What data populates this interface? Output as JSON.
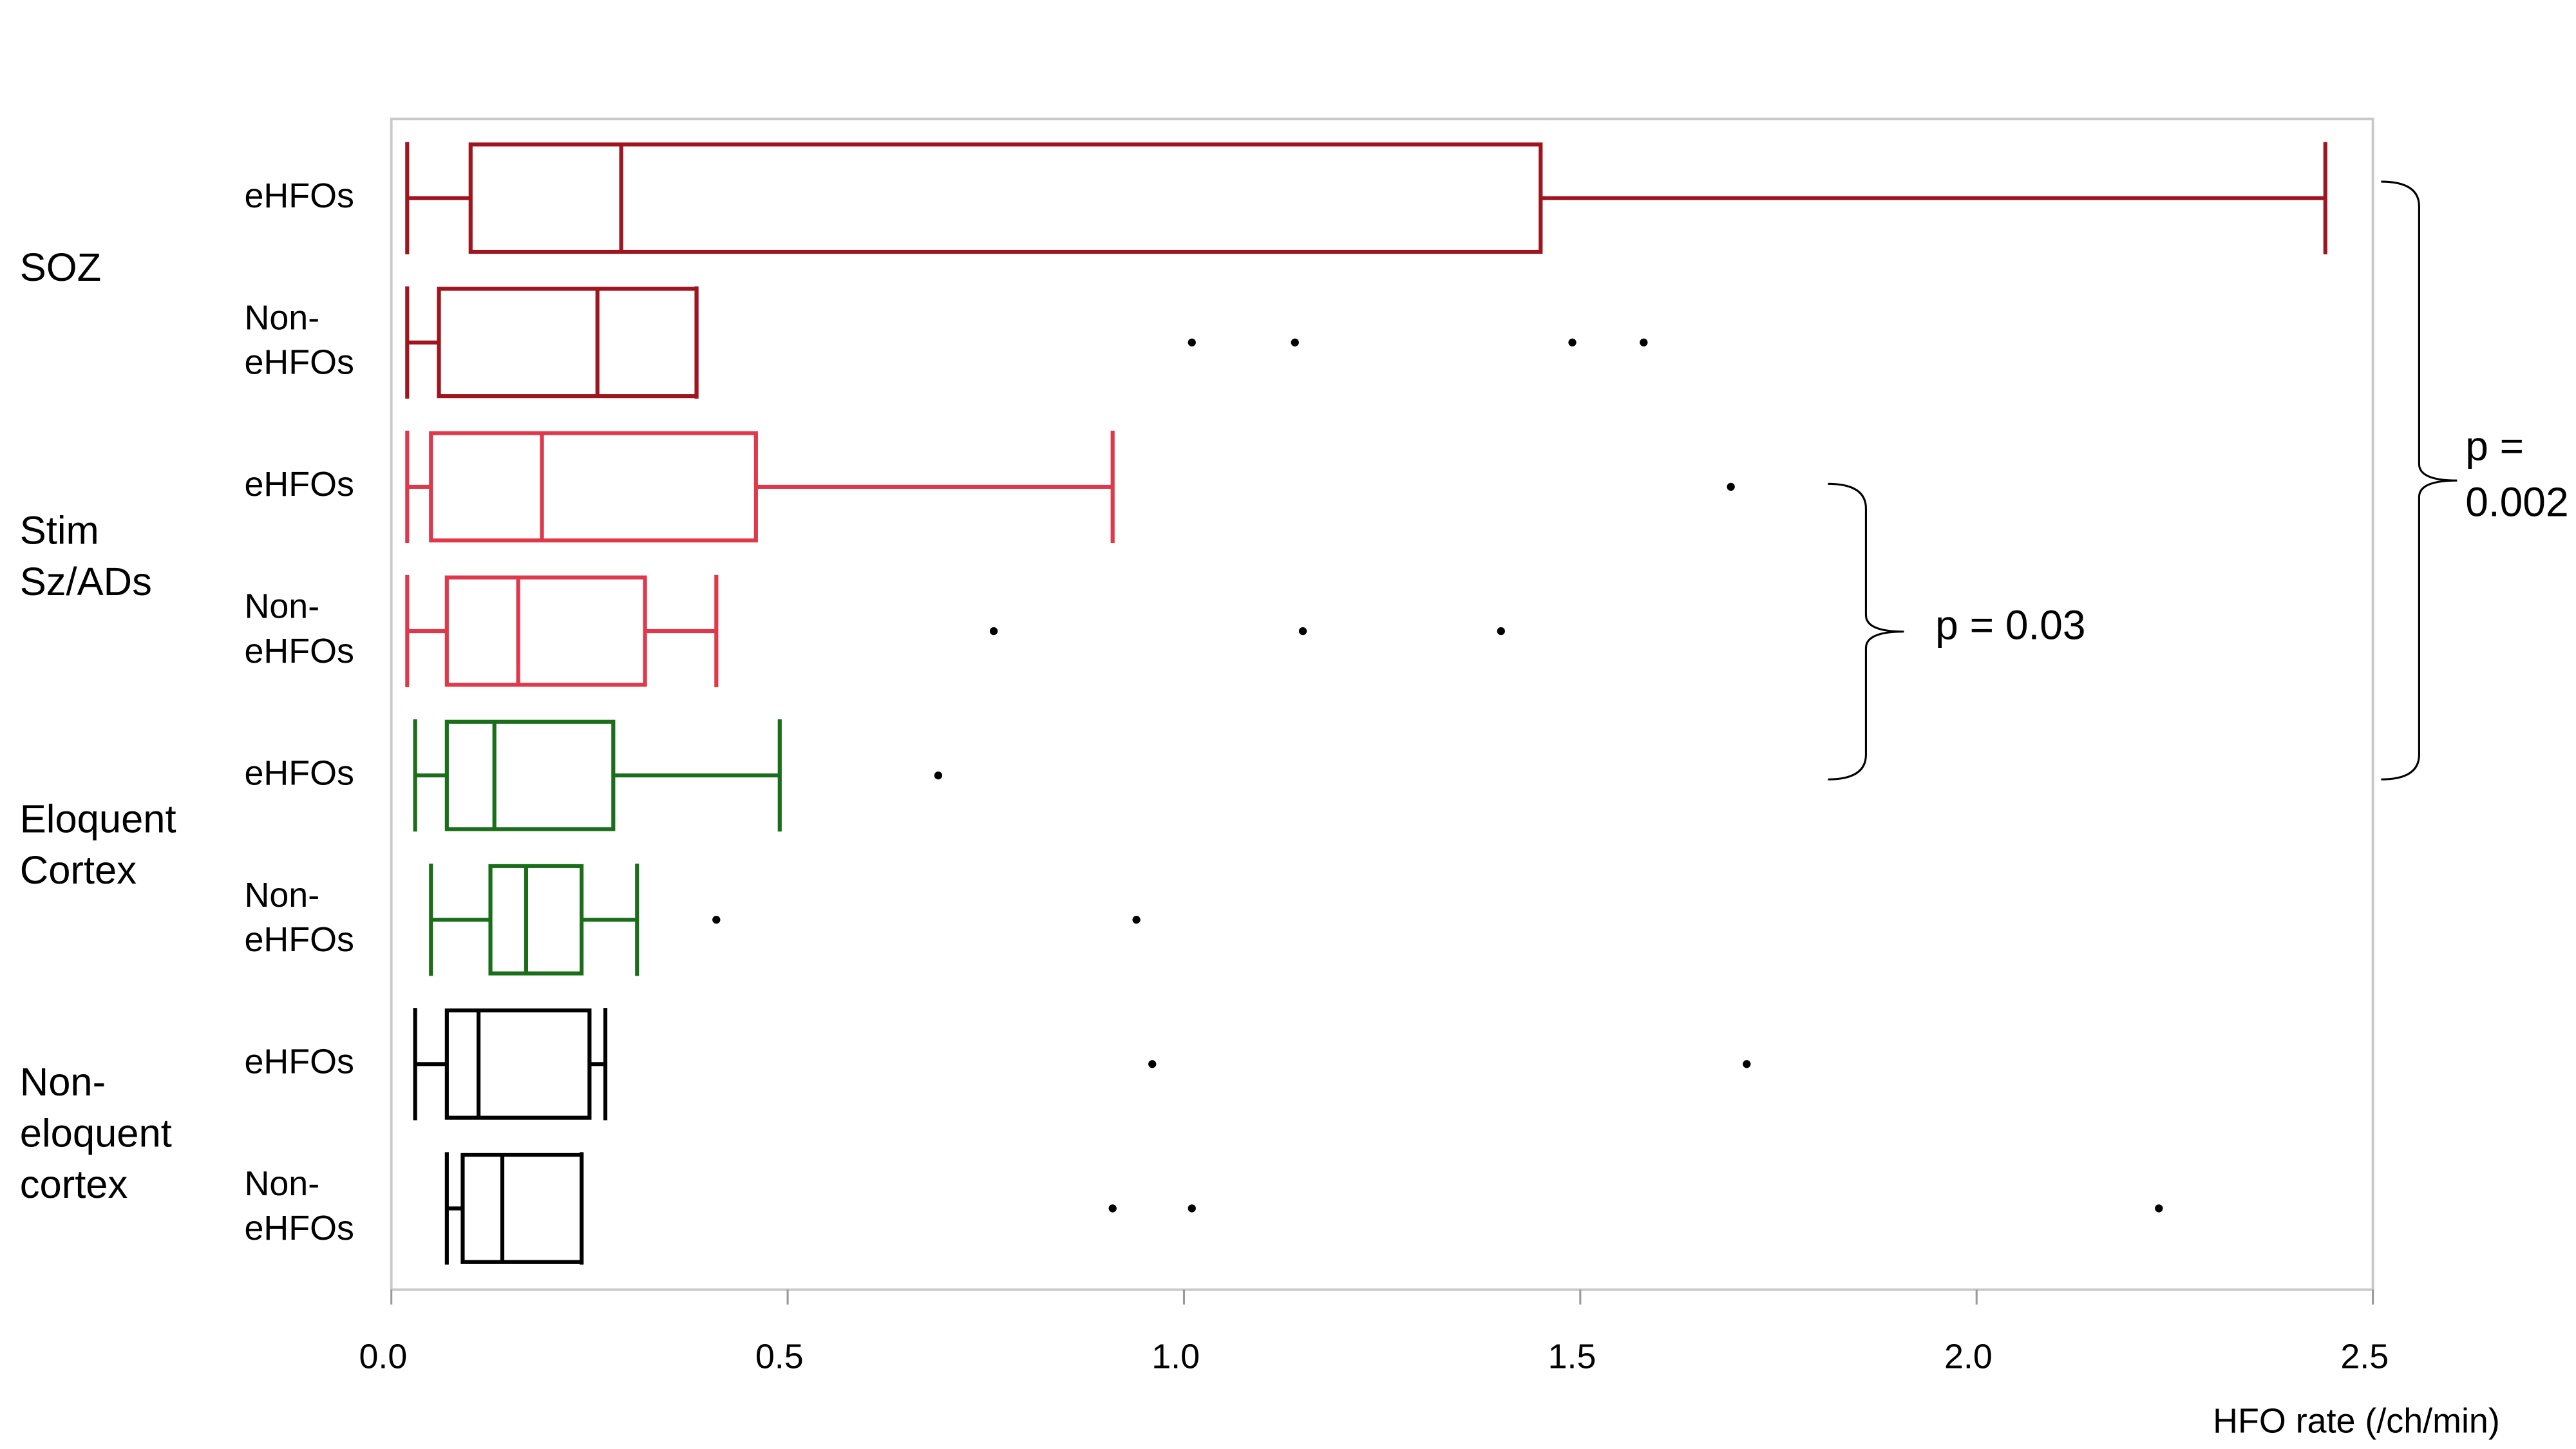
{
  "chart_data": {
    "type": "box",
    "x_label": "HFO rate (/ch/min)",
    "xlim": [
      0,
      2.5
    ],
    "xticks": [
      {
        "value": 0,
        "label": "0.0"
      },
      0.5,
      {
        "value": 1,
        "label": "1.0"
      },
      1.5,
      {
        "value": 2,
        "label": "2.0"
      },
      2.5
    ],
    "groups": [
      {
        "label": [
          "SOZ"
        ],
        "color": "#a0141e",
        "boxes": [
          {
            "label": [
              "eHFOs"
            ],
            "whislo": 0.02,
            "q1": 0.1,
            "med": 0.29,
            "q3": 1.45,
            "whishi": 2.44,
            "fliers": []
          },
          {
            "label": [
              "Non-",
              "eHFOs"
            ],
            "whislo": 0.02,
            "q1": 0.06,
            "med": 0.26,
            "q3": 0.385,
            "whishi": 0.385,
            "fliers": [
              1.01,
              1.14,
              1.49,
              1.58
            ]
          }
        ]
      },
      {
        "label": [
          "Stim",
          "Sz/ADs"
        ],
        "color": "#e0384b",
        "boxes": [
          {
            "label": [
              "eHFOs"
            ],
            "whislo": 0.02,
            "q1": 0.05,
            "med": 0.19,
            "q3": 0.46,
            "whishi": 0.91,
            "fliers": [
              1.69
            ]
          },
          {
            "label": [
              "Non-",
              "eHFOs"
            ],
            "whislo": 0.02,
            "q1": 0.07,
            "med": 0.16,
            "q3": 0.32,
            "whishi": 0.41,
            "fliers": [
              0.76,
              1.15,
              1.4
            ]
          }
        ]
      },
      {
        "label": [
          "Eloquent",
          "Cortex"
        ],
        "color": "#1a6e1a",
        "boxes": [
          {
            "label": [
              "eHFOs"
            ],
            "whislo": 0.03,
            "q1": 0.07,
            "med": 0.13,
            "q3": 0.28,
            "whishi": 0.49,
            "fliers": [
              0.69
            ]
          },
          {
            "label": [
              "Non-",
              "eHFOs"
            ],
            "whislo": 0.05,
            "q1": 0.125,
            "med": 0.17,
            "q3": 0.24,
            "whishi": 0.31,
            "fliers": [
              0.41,
              0.94
            ]
          }
        ]
      },
      {
        "label": [
          "Non-",
          "eloquent",
          "cortex"
        ],
        "color": "#000000",
        "boxes": [
          {
            "label": [
              "eHFOs"
            ],
            "whislo": 0.03,
            "q1": 0.07,
            "med": 0.11,
            "q3": 0.25,
            "whishi": 0.27,
            "fliers": [
              0.96,
              1.71
            ]
          },
          {
            "label": [
              "Non-",
              "eHFOs"
            ],
            "whislo": 0.07,
            "q1": 0.09,
            "med": 0.14,
            "q3": 0.24,
            "whishi": 0.24,
            "fliers": [
              0.91,
              1.01,
              2.23
            ]
          }
        ]
      }
    ],
    "annotations": [
      {
        "text": [
          "p = 0.03"
        ]
      },
      {
        "text": [
          "p =",
          "0.002"
        ]
      }
    ]
  }
}
